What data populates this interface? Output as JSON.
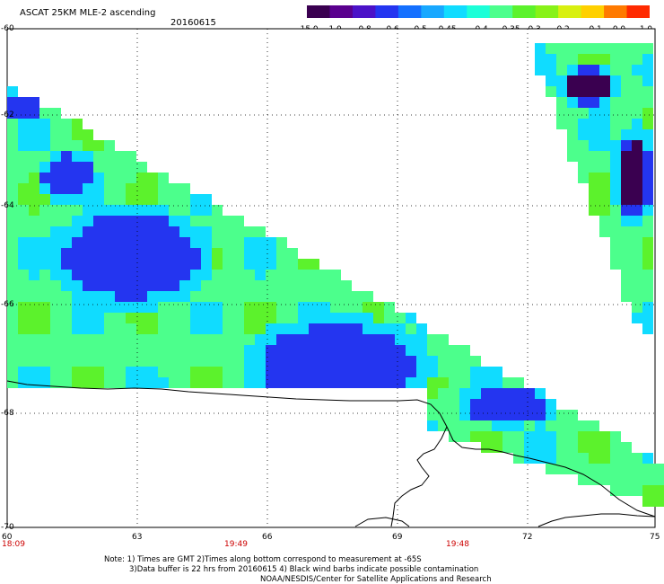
{
  "header": {
    "title": "ASCAT 25KM MLE-2 ascending",
    "date": "20160615"
  },
  "colorbar": {
    "labels": [
      "-15.0",
      "-1.0",
      "-0.8",
      "-0.6",
      "-0.5",
      "-0.45",
      "-0.4",
      "-0.35",
      "-0.3",
      "-0.2",
      "-0.1",
      "0.0",
      "1.0"
    ],
    "colors": [
      "#3a0050",
      "#5a008e",
      "#4b12c8",
      "#2435f0",
      "#1470ff",
      "#18a8ff",
      "#10dcff",
      "#1cffd8",
      "#4cff8c",
      "#5cf22c",
      "#88f218",
      "#d8f010",
      "#ffd000",
      "#ff7a00",
      "#ff2a00"
    ]
  },
  "axes": {
    "y_labels": [
      "-60",
      "-62",
      "-64",
      "-66",
      "-68",
      "-70"
    ],
    "x_labels": [
      "60",
      "63",
      "66",
      "69",
      "72",
      "75"
    ],
    "time_labels": [
      "18:09",
      "19:49",
      "19:48"
    ]
  },
  "notes": {
    "line1": "Note: 1) Times are GMT 2)Times along bottom correspond to measurement at -65S",
    "line2": "3)Data buffer is 22 hrs from 20160615 4) Black wind barbs indicate possible contamination",
    "line3": "NOAA/NESDIS/Center for Satellite Applications and Research"
  },
  "map": {
    "field_colors": {
      "deep": "#3a0050",
      "blue": "#2435f0",
      "cyan": "#10dcff",
      "green": "#4cff8c",
      "lime": "#5cf22c"
    }
  }
}
